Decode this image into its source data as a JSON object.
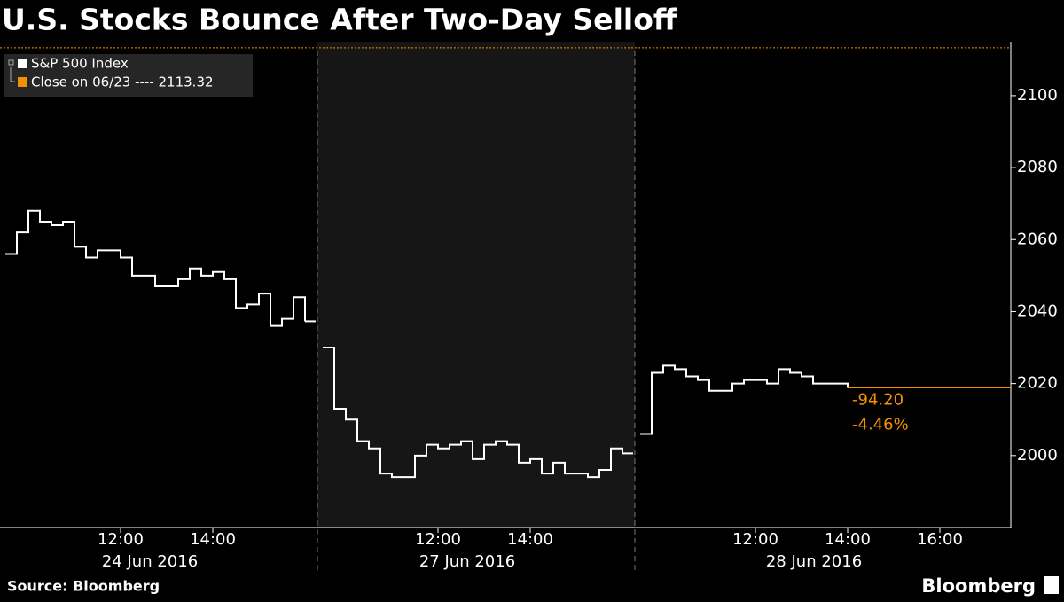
{
  "chart_data": {
    "type": "line",
    "title": "U.S. Stocks Bounce After Two-Day Selloff",
    "series_name": "S&P 500 Index",
    "color": "#ffffff",
    "days": [
      {
        "date": "24 Jun 2016",
        "shaded": false,
        "xticks": [
          "12:00",
          "14:00"
        ],
        "x": [
          "09:30",
          "09:45",
          "10:00",
          "10:15",
          "10:30",
          "10:45",
          "11:00",
          "11:15",
          "11:30",
          "11:45",
          "12:00",
          "12:15",
          "12:30",
          "12:45",
          "13:00",
          "13:15",
          "13:30",
          "13:45",
          "14:00",
          "14:15",
          "14:30",
          "14:45",
          "15:00",
          "15:15",
          "15:30",
          "15:45",
          "16:00"
        ],
        "values": [
          2056,
          2062,
          2068,
          2065,
          2064,
          2065,
          2058,
          2055,
          2057,
          2057,
          2055,
          2050,
          2050,
          2047,
          2047,
          2049,
          2052,
          2050,
          2051,
          2049,
          2041,
          2042,
          2045,
          2036,
          2038,
          2044,
          2037.3
        ]
      },
      {
        "date": "27 Jun 2016",
        "shaded": true,
        "xticks": [
          "12:00",
          "14:00"
        ],
        "x": [
          "09:30",
          "09:45",
          "10:00",
          "10:15",
          "10:30",
          "10:45",
          "11:00",
          "11:15",
          "11:30",
          "11:45",
          "12:00",
          "12:15",
          "12:30",
          "12:45",
          "13:00",
          "13:15",
          "13:30",
          "13:45",
          "14:00",
          "14:15",
          "14:30",
          "14:45",
          "15:00",
          "15:15",
          "15:30",
          "15:45",
          "16:00"
        ],
        "values": [
          2030,
          2013,
          2010,
          2004,
          2002,
          1995,
          1994,
          1994,
          2000,
          2003,
          2002,
          2003,
          2004,
          1999,
          2003,
          2004,
          2003,
          1998,
          1999,
          1995,
          1998,
          1995,
          1995,
          1994,
          1996,
          2002,
          2000.6
        ]
      },
      {
        "date": "28 Jun 2016",
        "shaded": false,
        "xticks": [
          "12:00",
          "14:00",
          "16:00"
        ],
        "x": [
          "09:30",
          "09:45",
          "10:00",
          "10:15",
          "10:30",
          "10:45",
          "11:00",
          "11:15",
          "11:30",
          "11:45",
          "12:00",
          "12:15",
          "12:30",
          "12:45",
          "13:00",
          "13:15",
          "13:30",
          "13:45",
          "14:00"
        ],
        "values": [
          2006,
          2023,
          2025,
          2024,
          2022,
          2021,
          2018,
          2018,
          2020,
          2021,
          2021,
          2020,
          2024,
          2023,
          2022,
          2020,
          2020,
          2020,
          2018.8
        ]
      }
    ],
    "ylim": [
      1980,
      2115
    ],
    "yticks": [
      2000,
      2020,
      2040,
      2060,
      2080,
      2100
    ],
    "reference": {
      "label": "Close on 06/23 ---- 2113.32",
      "value": 2113.32,
      "color": "#f39200"
    },
    "annotations": [
      "-94.20",
      "-4.46%"
    ],
    "source": "Source: Bloomberg",
    "brand": "Bloomberg"
  }
}
